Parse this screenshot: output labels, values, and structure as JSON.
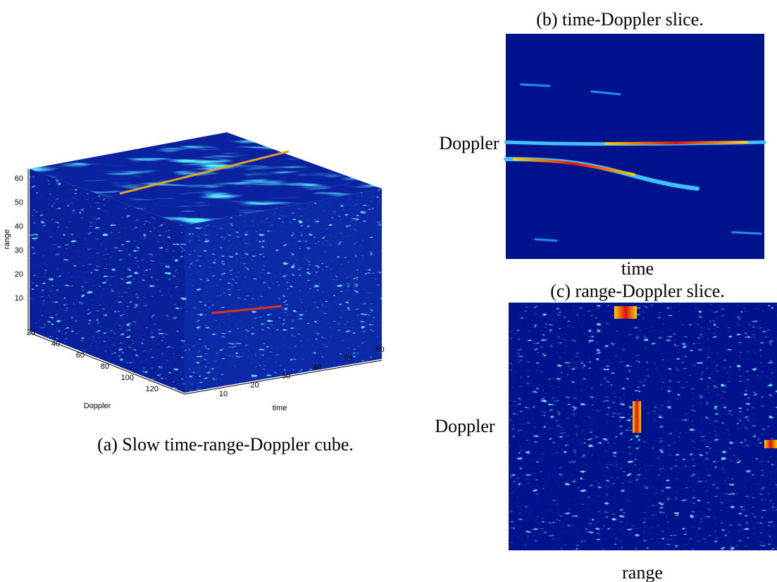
{
  "panel_a": {
    "caption": "(a) Slow time-range-Doppler cube.",
    "range_label": "range",
    "doppler_label": "Doppler",
    "time_label": "time",
    "range_ticks": [
      "10",
      "20",
      "30",
      "40",
      "50",
      "60"
    ],
    "doppler_ticks": [
      "20",
      "40",
      "60",
      "80",
      "100",
      "120"
    ],
    "time_ticks": [
      "10",
      "20",
      "30",
      "40",
      "50",
      "60"
    ]
  },
  "panel_b": {
    "caption": "(b) time-Doppler slice.",
    "y_label": "Doppler",
    "x_label": "time"
  },
  "panel_c": {
    "caption": "(c) range-Doppler slice.",
    "y_label": "Doppler",
    "x_label": "range"
  }
}
